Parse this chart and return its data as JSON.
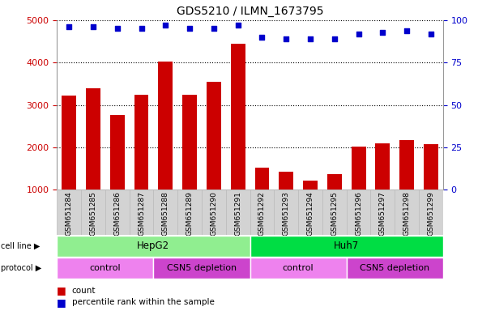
{
  "title": "GDS5210 / ILMN_1673795",
  "samples": [
    "GSM651284",
    "GSM651285",
    "GSM651286",
    "GSM651287",
    "GSM651288",
    "GSM651289",
    "GSM651290",
    "GSM651291",
    "GSM651292",
    "GSM651293",
    "GSM651294",
    "GSM651295",
    "GSM651296",
    "GSM651297",
    "GSM651298",
    "GSM651299"
  ],
  "counts": [
    3220,
    3400,
    2770,
    3250,
    4030,
    3250,
    3550,
    4450,
    1520,
    1430,
    1210,
    1360,
    2010,
    2100,
    2170,
    2070
  ],
  "percentile": [
    96,
    96,
    95,
    95,
    97,
    95,
    95,
    97,
    90,
    89,
    89,
    89,
    92,
    93,
    94,
    92
  ],
  "bar_color": "#cc0000",
  "dot_color": "#0000cc",
  "ylim_left": [
    1000,
    5000
  ],
  "ylim_right": [
    0,
    100
  ],
  "yticks_left": [
    1000,
    2000,
    3000,
    4000,
    5000
  ],
  "yticks_right": [
    0,
    25,
    50,
    75,
    100
  ],
  "cell_line_regions": [
    {
      "label": "HepG2",
      "start": 0,
      "end": 7,
      "color": "#90ee90"
    },
    {
      "label": "Huh7",
      "start": 8,
      "end": 15,
      "color": "#00dd44"
    }
  ],
  "protocol_regions": [
    {
      "label": "control",
      "start": 0,
      "end": 3,
      "color": "#ee82ee"
    },
    {
      "label": "CSN5 depletion",
      "start": 4,
      "end": 7,
      "color": "#cc44cc"
    },
    {
      "label": "control",
      "start": 8,
      "end": 11,
      "color": "#ee82ee"
    },
    {
      "label": "CSN5 depletion",
      "start": 12,
      "end": 15,
      "color": "#cc44cc"
    }
  ],
  "legend_count_label": "count",
  "legend_pct_label": "percentile rank within the sample",
  "cell_line_label": "cell line",
  "protocol_label": "protocol",
  "grid_color": "#000000",
  "tick_label_color_left": "#cc0000",
  "tick_label_color_right": "#0000cc",
  "bg_color": "#ffffff",
  "xlabel_bg": "#d3d3d3"
}
